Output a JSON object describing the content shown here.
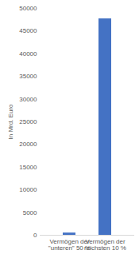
{
  "chart_data": {
    "type": "bar",
    "y_label": "In Mrd. Euro",
    "categories": [
      "Vermögen der \"unteren\" 50 %",
      "Vermögen der reichsten 10 %"
    ],
    "values": [
      500,
      47700
    ],
    "color": "#4472c4",
    "ylim": [
      0,
      50000
    ],
    "yticks": [
      0,
      5000,
      10000,
      15000,
      20000,
      25000,
      30000,
      35000,
      40000,
      45000,
      50000
    ],
    "grid": false
  }
}
